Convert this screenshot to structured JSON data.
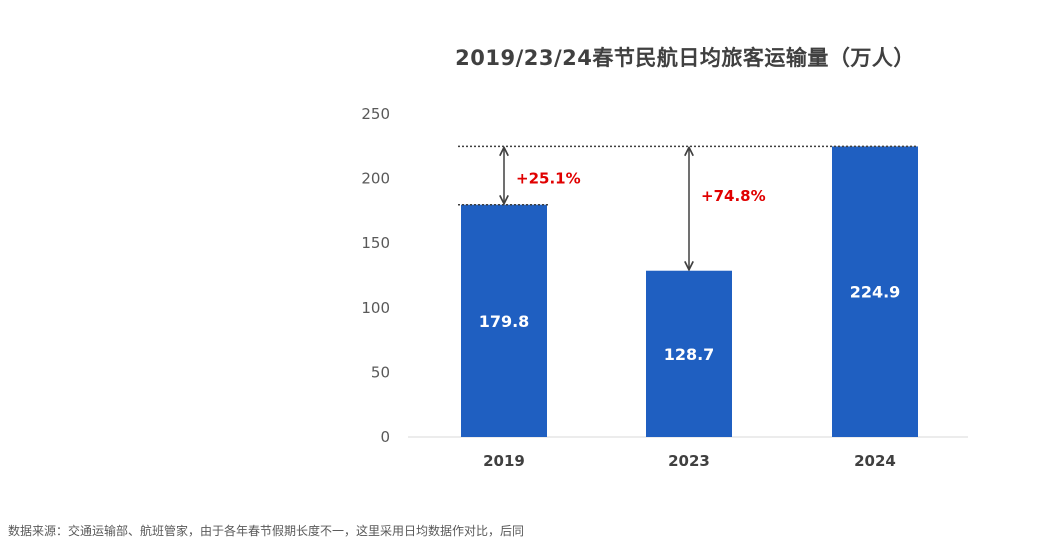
{
  "chart_data": {
    "type": "bar",
    "title": "2019/23/24春节民航日均旅客运输量（万人）",
    "categories": [
      "2019",
      "2023",
      "2024"
    ],
    "values": [
      179.8,
      128.7,
      224.9
    ],
    "value_labels": [
      "179.8",
      "128.7",
      "224.9"
    ],
    "ylim": [
      0,
      250
    ],
    "yticks": [
      0,
      50,
      100,
      150,
      200,
      250
    ],
    "xlabel": "",
    "ylabel": "",
    "grid": false,
    "bar_color": "#1f5fc1",
    "annotations": [
      {
        "from": "2019",
        "to": "2024",
        "label": "+25.1%"
      },
      {
        "from": "2023",
        "to": "2024",
        "label": "+74.8%"
      }
    ],
    "annotation_color": "#e00000"
  },
  "footer": {
    "source": "数据来源：交通运输部、航班管家，由于各年春节假期长度不一，这里采用日均数据作对比，后同"
  }
}
